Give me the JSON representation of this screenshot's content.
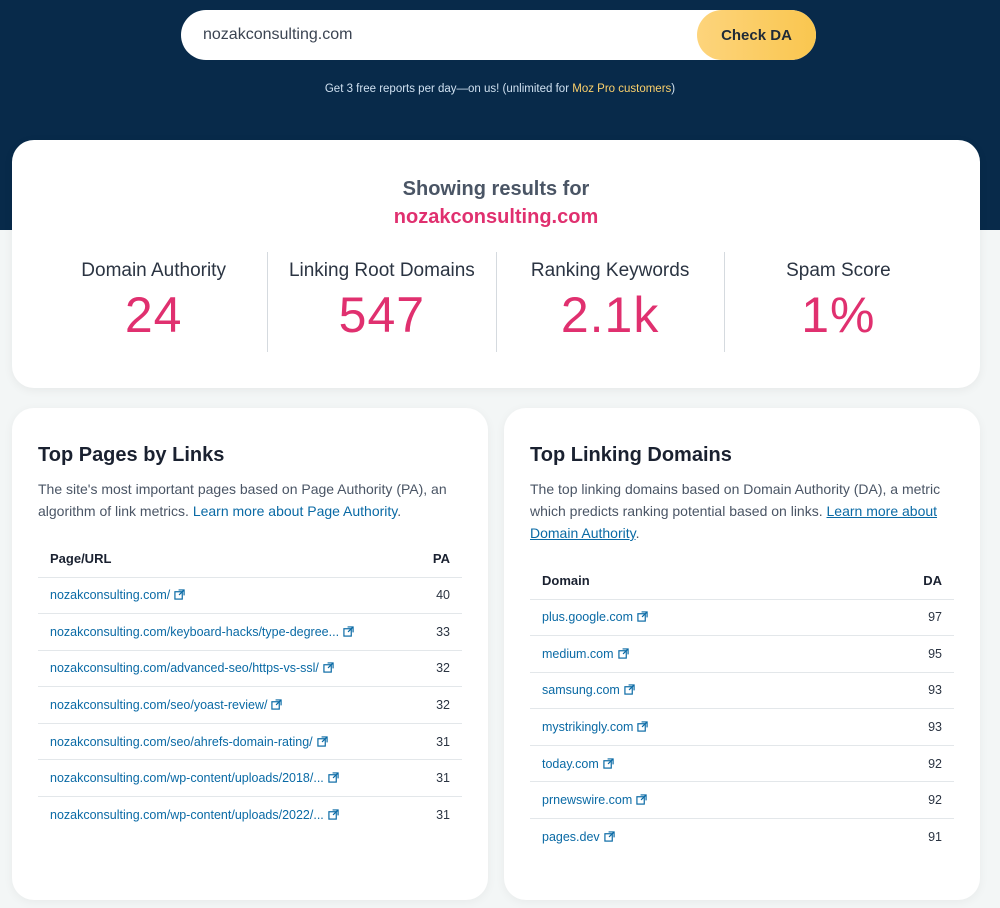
{
  "search": {
    "value": "nozakconsulting.com",
    "button_label": "Check DA"
  },
  "free_note": {
    "prefix": "Get 3 free reports per day—on us! (unlimited for ",
    "link": "Moz Pro customers",
    "suffix": ")"
  },
  "results": {
    "showing_label": "Showing results for",
    "domain": "nozakconsulting.com",
    "metrics": [
      {
        "label": "Domain Authority",
        "value": "24"
      },
      {
        "label": "Linking Root Domains",
        "value": "547"
      },
      {
        "label": "Ranking Keywords",
        "value": "2.1k"
      },
      {
        "label": "Spam Score",
        "value": "1%"
      }
    ]
  },
  "top_pages": {
    "title": "Top Pages by Links",
    "desc": "The site's most important pages based on Page Authority (PA), an algorithm of link metrics. ",
    "link": "Learn more about Page Authority",
    "desc_end": ".",
    "col_url": "Page/URL",
    "col_pa": "PA",
    "rows": [
      {
        "url": "nozakconsulting.com/",
        "pa": "40"
      },
      {
        "url": "nozakconsulting.com/keyboard-hacks/type-degree...",
        "pa": "33"
      },
      {
        "url": "nozakconsulting.com/advanced-seo/https-vs-ssl/",
        "pa": "32"
      },
      {
        "url": "nozakconsulting.com/seo/yoast-review/",
        "pa": "32"
      },
      {
        "url": "nozakconsulting.com/seo/ahrefs-domain-rating/",
        "pa": "31"
      },
      {
        "url": "nozakconsulting.com/wp-content/uploads/2018/...",
        "pa": "31"
      },
      {
        "url": "nozakconsulting.com/wp-content/uploads/2022/...",
        "pa": "31"
      }
    ]
  },
  "top_domains": {
    "title": "Top Linking Domains",
    "desc": "The top linking domains based on Domain Authority (DA), a metric which predicts ranking potential based on links. ",
    "link": "Learn more about Domain Authority",
    "desc_end": ".",
    "col_domain": "Domain",
    "col_da": "DA",
    "rows": [
      {
        "domain": "plus.google.com",
        "da": "97"
      },
      {
        "domain": "medium.com",
        "da": "95"
      },
      {
        "domain": "samsung.com",
        "da": "93"
      },
      {
        "domain": "mystrikingly.com",
        "da": "93"
      },
      {
        "domain": "today.com",
        "da": "92"
      },
      {
        "domain": "prnewswire.com",
        "da": "92"
      },
      {
        "domain": "pages.dev",
        "da": "91"
      }
    ]
  },
  "colors": {
    "hero_bg": "#082a4a",
    "accent_pink": "#e0306f",
    "button_yellow": "#f9c64f",
    "link_blue": "#0a6aa5"
  },
  "icons": {
    "external_link": "external-link-icon"
  }
}
